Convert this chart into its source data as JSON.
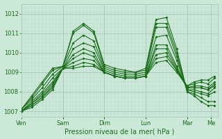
{
  "background_color": "#cce8d8",
  "plot_bg_color": "#cce8d8",
  "line_color": "#1a6e1a",
  "marker_color": "#1a6e1a",
  "grid_major_color": "#aaccbb",
  "grid_minor_color": "#bbd8cc",
  "xlabel": "Pression niveau de la mer( hPa )",
  "ylim": [
    1006.7,
    1012.5
  ],
  "yticks": [
    1007,
    1008,
    1009,
    1010,
    1011,
    1012
  ],
  "x_day_labels": [
    "Ven",
    "Sam",
    "Dim",
    "Lun",
    "Mar",
    "Me"
  ],
  "x_day_positions": [
    0,
    24,
    48,
    72,
    96,
    110
  ],
  "xlim": [
    0,
    114
  ],
  "series": [
    {
      "points": [
        [
          0,
          1007.1
        ],
        [
          6,
          1007.8
        ],
        [
          12,
          1008.5
        ],
        [
          18,
          1009.2
        ],
        [
          24,
          1009.3
        ],
        [
          30,
          1011.1
        ],
        [
          36,
          1011.5
        ],
        [
          42,
          1011.1
        ],
        [
          48,
          1009.4
        ],
        [
          54,
          1009.2
        ],
        [
          60,
          1009.1
        ],
        [
          66,
          1009.0
        ],
        [
          72,
          1009.2
        ],
        [
          78,
          1011.7
        ],
        [
          84,
          1011.8
        ],
        [
          90,
          1010.2
        ],
        [
          96,
          1008.0
        ],
        [
          100,
          1007.8
        ],
        [
          104,
          1007.5
        ],
        [
          108,
          1007.3
        ],
        [
          112,
          1007.3
        ]
      ]
    },
    {
      "points": [
        [
          0,
          1007.1
        ],
        [
          6,
          1007.7
        ],
        [
          12,
          1008.4
        ],
        [
          18,
          1009.1
        ],
        [
          24,
          1009.3
        ],
        [
          30,
          1011.0
        ],
        [
          36,
          1011.4
        ],
        [
          42,
          1011.0
        ],
        [
          48,
          1009.3
        ],
        [
          54,
          1009.1
        ],
        [
          60,
          1009.0
        ],
        [
          66,
          1009.0
        ],
        [
          72,
          1009.1
        ],
        [
          78,
          1011.5
        ],
        [
          84,
          1011.5
        ],
        [
          90,
          1010.0
        ],
        [
          96,
          1008.0
        ],
        [
          100,
          1007.9
        ],
        [
          104,
          1007.7
        ],
        [
          108,
          1007.5
        ],
        [
          112,
          1007.5
        ]
      ]
    },
    {
      "points": [
        [
          0,
          1007.1
        ],
        [
          6,
          1007.6
        ],
        [
          12,
          1008.2
        ],
        [
          18,
          1008.9
        ],
        [
          24,
          1009.3
        ],
        [
          30,
          1010.5
        ],
        [
          36,
          1010.9
        ],
        [
          42,
          1010.6
        ],
        [
          48,
          1009.2
        ],
        [
          54,
          1009.0
        ],
        [
          60,
          1008.9
        ],
        [
          66,
          1008.9
        ],
        [
          72,
          1009.0
        ],
        [
          78,
          1011.3
        ],
        [
          84,
          1011.3
        ],
        [
          90,
          1009.8
        ],
        [
          96,
          1008.1
        ],
        [
          100,
          1008.0
        ],
        [
          104,
          1007.9
        ],
        [
          108,
          1007.8
        ],
        [
          112,
          1008.0
        ]
      ]
    },
    {
      "points": [
        [
          0,
          1007.0
        ],
        [
          6,
          1007.5
        ],
        [
          12,
          1008.0
        ],
        [
          18,
          1008.7
        ],
        [
          24,
          1009.2
        ],
        [
          30,
          1010.2
        ],
        [
          36,
          1010.5
        ],
        [
          42,
          1010.3
        ],
        [
          48,
          1009.1
        ],
        [
          54,
          1008.9
        ],
        [
          60,
          1008.8
        ],
        [
          66,
          1008.8
        ],
        [
          72,
          1008.9
        ],
        [
          78,
          1010.8
        ],
        [
          84,
          1010.9
        ],
        [
          90,
          1009.6
        ],
        [
          96,
          1008.1
        ],
        [
          100,
          1008.1
        ],
        [
          104,
          1008.0
        ],
        [
          108,
          1007.9
        ],
        [
          112,
          1008.2
        ]
      ]
    },
    {
      "points": [
        [
          0,
          1007.0
        ],
        [
          6,
          1007.4
        ],
        [
          12,
          1007.9
        ],
        [
          18,
          1008.5
        ],
        [
          24,
          1009.2
        ],
        [
          30,
          1009.9
        ],
        [
          36,
          1010.2
        ],
        [
          42,
          1010.0
        ],
        [
          48,
          1009.0
        ],
        [
          54,
          1008.8
        ],
        [
          60,
          1008.7
        ],
        [
          66,
          1008.7
        ],
        [
          72,
          1008.8
        ],
        [
          78,
          1010.4
        ],
        [
          84,
          1010.4
        ],
        [
          90,
          1009.3
        ],
        [
          96,
          1008.2
        ],
        [
          100,
          1008.2
        ],
        [
          104,
          1008.2
        ],
        [
          108,
          1008.1
        ],
        [
          112,
          1008.3
        ]
      ]
    },
    {
      "points": [
        [
          0,
          1007.0
        ],
        [
          6,
          1007.4
        ],
        [
          12,
          1007.8
        ],
        [
          18,
          1008.4
        ],
        [
          24,
          1009.2
        ],
        [
          30,
          1009.7
        ],
        [
          36,
          1010.0
        ],
        [
          42,
          1009.8
        ],
        [
          48,
          1009.0
        ],
        [
          54,
          1008.8
        ],
        [
          60,
          1008.7
        ],
        [
          66,
          1008.7
        ],
        [
          72,
          1008.8
        ],
        [
          78,
          1010.2
        ],
        [
          84,
          1010.2
        ],
        [
          90,
          1009.2
        ],
        [
          96,
          1008.2
        ],
        [
          100,
          1008.2
        ],
        [
          104,
          1008.2
        ],
        [
          108,
          1008.1
        ],
        [
          112,
          1008.4
        ]
      ]
    },
    {
      "points": [
        [
          0,
          1007.0
        ],
        [
          6,
          1007.3
        ],
        [
          12,
          1007.7
        ],
        [
          18,
          1008.3
        ],
        [
          24,
          1009.2
        ],
        [
          30,
          1009.5
        ],
        [
          36,
          1009.7
        ],
        [
          42,
          1009.6
        ],
        [
          48,
          1009.0
        ],
        [
          54,
          1008.8
        ],
        [
          60,
          1008.7
        ],
        [
          66,
          1008.7
        ],
        [
          72,
          1008.8
        ],
        [
          78,
          1009.9
        ],
        [
          84,
          1010.0
        ],
        [
          90,
          1009.1
        ],
        [
          96,
          1008.2
        ],
        [
          100,
          1008.3
        ],
        [
          104,
          1008.3
        ],
        [
          108,
          1008.2
        ],
        [
          112,
          1008.5
        ]
      ]
    },
    {
      "points": [
        [
          0,
          1007.0
        ],
        [
          6,
          1007.3
        ],
        [
          12,
          1007.7
        ],
        [
          18,
          1008.2
        ],
        [
          24,
          1009.2
        ],
        [
          30,
          1009.3
        ],
        [
          36,
          1009.5
        ],
        [
          42,
          1009.4
        ],
        [
          48,
          1009.0
        ],
        [
          54,
          1008.8
        ],
        [
          60,
          1008.7
        ],
        [
          66,
          1008.7
        ],
        [
          72,
          1008.8
        ],
        [
          78,
          1009.7
        ],
        [
          84,
          1009.8
        ],
        [
          90,
          1009.1
        ],
        [
          96,
          1008.3
        ],
        [
          100,
          1008.4
        ],
        [
          104,
          1008.5
        ],
        [
          108,
          1008.4
        ],
        [
          112,
          1008.7
        ]
      ]
    },
    {
      "points": [
        [
          0,
          1007.0
        ],
        [
          6,
          1007.2
        ],
        [
          12,
          1007.6
        ],
        [
          18,
          1008.1
        ],
        [
          24,
          1009.2
        ],
        [
          30,
          1009.2
        ],
        [
          36,
          1009.3
        ],
        [
          42,
          1009.3
        ],
        [
          48,
          1009.0
        ],
        [
          54,
          1008.8
        ],
        [
          60,
          1008.7
        ],
        [
          66,
          1008.7
        ],
        [
          72,
          1008.8
        ],
        [
          78,
          1009.5
        ],
        [
          84,
          1009.6
        ],
        [
          90,
          1009.0
        ],
        [
          96,
          1008.3
        ],
        [
          100,
          1008.5
        ],
        [
          104,
          1008.6
        ],
        [
          108,
          1008.6
        ],
        [
          112,
          1008.8
        ]
      ]
    }
  ]
}
